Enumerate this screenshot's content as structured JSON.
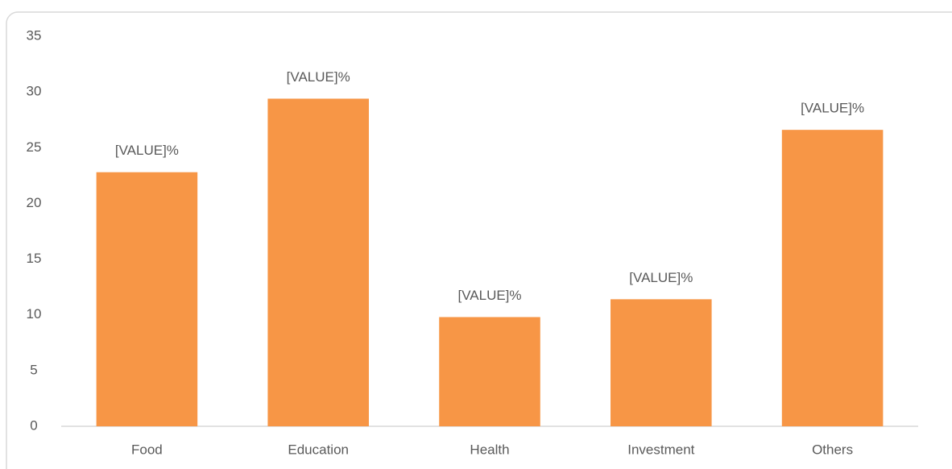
{
  "chart_data": {
    "type": "bar",
    "categories": [
      "Food",
      "Education",
      "Health",
      "Investment",
      "Others"
    ],
    "values": [
      22.8,
      29.4,
      9.8,
      11.4,
      26.6
    ],
    "value_labels": [
      "[VALUE]%",
      "[VALUE]%",
      "[VALUE]%",
      "[VALUE]%",
      "[VALUE]%"
    ],
    "color": "#f79646",
    "ylim": [
      0,
      35
    ],
    "yticks": [
      0,
      5,
      10,
      15,
      20,
      25,
      30,
      35
    ],
    "grid": false
  }
}
